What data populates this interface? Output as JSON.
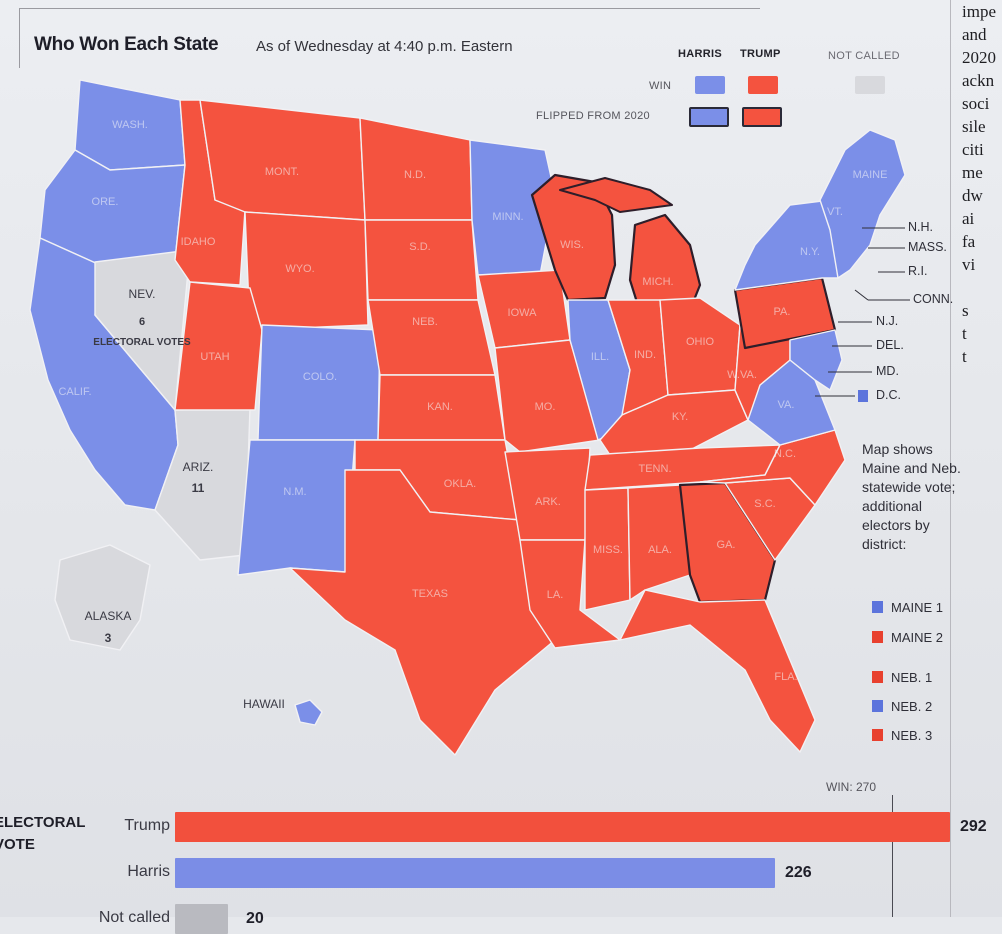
{
  "header": {
    "title": "Who Won Each State",
    "subtitle": "As of Wednesday at 4:40 p.m. Eastern"
  },
  "legend": {
    "harris": "HARRIS",
    "trump": "TRUMP",
    "not_called": "NOT CALLED",
    "win": "WIN",
    "flipped": "FLIPPED FROM 2020",
    "colors": {
      "harris": "#7b8fe8",
      "trump": "#f4533f",
      "not_called": "#d8d9dd",
      "harris_dark": "#5c74dc",
      "trump_dark": "#e8402e"
    }
  },
  "map": {
    "state_labels": {
      "wash": "WASH.",
      "ore": "ORE.",
      "calif": "CALIF.",
      "idaho": "IDAHO",
      "mont": "MONT.",
      "wyo": "WYO.",
      "utah": "UTAH",
      "colo": "COLO.",
      "nm": "N.M.",
      "nd": "N.D.",
      "sd": "S.D.",
      "neb": "NEB.",
      "kan": "KAN.",
      "okla": "OKLA.",
      "texas": "TEXAS",
      "minn": "MINN.",
      "iowa": "IOWA",
      "mo": "MO.",
      "ark": "ARK.",
      "la": "LA.",
      "wis": "WIS.",
      "ill": "ILL.",
      "mich": "MICH.",
      "ind": "IND.",
      "ohio": "OHIO",
      "ky": "KY.",
      "tenn": "TENN.",
      "miss": "MISS.",
      "ala": "ALA.",
      "ga": "GA.",
      "fla": "FLA.",
      "sc": "S.C.",
      "nc": "N.C.",
      "va": "VA.",
      "wva": "W.VA.",
      "pa": "PA.",
      "ny": "N.Y.",
      "vt": "VT.",
      "maine": "MAINE",
      "hawaii": "HAWAII"
    },
    "not_called": {
      "nev_name": "NEV.",
      "nev_votes": "6",
      "nev_caption": "ELECTORAL VOTES",
      "ariz_name": "ARIZ.",
      "ariz_votes": "11",
      "alaska_name": "ALASKA",
      "alaska_votes": "3"
    },
    "northeast_labels": [
      "N.H.",
      "MASS.",
      "R.I.",
      "CONN.",
      "N.J.",
      "DEL.",
      "MD.",
      "D.C."
    ],
    "note": "Map shows Maine and Neb. statewide vote; additional electors by district:",
    "districts": [
      {
        "label": "MAINE 1",
        "color": "#5c74dc"
      },
      {
        "label": "MAINE 2",
        "color": "#e8402e"
      },
      {
        "label": "NEB. 1",
        "color": "#e8402e"
      },
      {
        "label": "NEB. 2",
        "color": "#5c74dc"
      },
      {
        "label": "NEB. 3",
        "color": "#e8402e"
      }
    ]
  },
  "electoral_vote": {
    "label_line1": "ELECTORAL",
    "label_line2": "VOTE",
    "win_label": "WIN: 270",
    "win_threshold": 270,
    "candidates": [
      {
        "name": "Trump",
        "votes": 292,
        "color": "#f2503d"
      },
      {
        "name": "Harris",
        "votes": 226,
        "color": "#7b8de6"
      },
      {
        "name": "Not called",
        "votes": 20,
        "color": "#b9bac0"
      }
    ]
  },
  "sidebar_text": [
    "impe",
    "and",
    "2020",
    "ackn",
    "soci",
    "sile",
    "citi",
    "me",
    "dw",
    "ai",
    "fa",
    "vi",
    "",
    "s",
    "t",
    "t"
  ]
}
